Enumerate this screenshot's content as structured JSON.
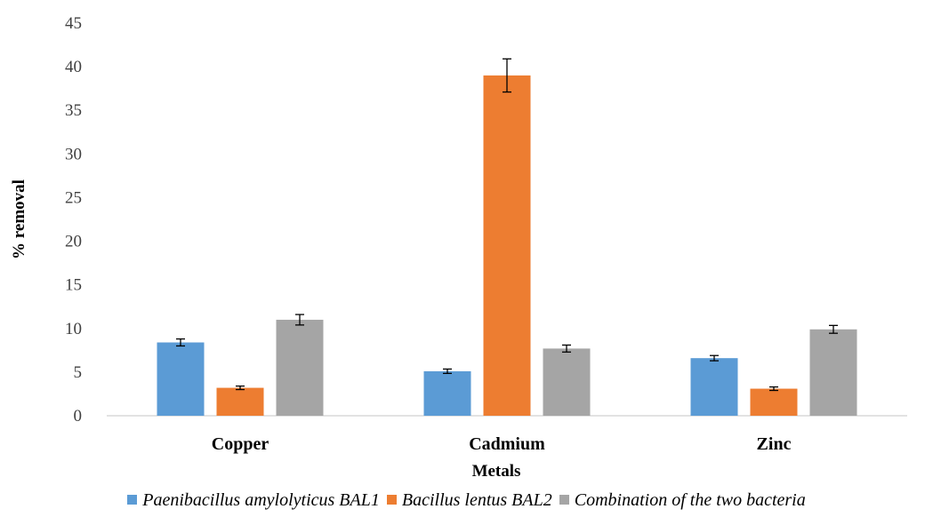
{
  "chart_data": {
    "type": "bar",
    "title": "",
    "xlabel": "Metals",
    "ylabel": "% removal",
    "categories": [
      "Copper",
      "Cadmium",
      "Zinc"
    ],
    "ylim": [
      0,
      45
    ],
    "yticks": [
      0,
      5,
      10,
      15,
      20,
      25,
      30,
      35,
      40,
      45
    ],
    "grid": false,
    "legend_position": "bottom",
    "series": [
      {
        "name": "Paenibacillus amylolyticus BAL1",
        "color": "#5b9bd5",
        "values": [
          8.4,
          5.1,
          6.6
        ],
        "errors": [
          0.4,
          0.25,
          0.3
        ]
      },
      {
        "name": "Bacillus lentus BAL2",
        "color": "#ed7d31",
        "values": [
          3.2,
          39.0,
          3.1
        ],
        "errors": [
          0.2,
          1.9,
          0.2
        ]
      },
      {
        "name": "Combination of the two bacteria",
        "color": "#a5a5a5",
        "values": [
          11.0,
          7.7,
          9.9
        ],
        "errors": [
          0.6,
          0.4,
          0.45
        ]
      }
    ]
  }
}
